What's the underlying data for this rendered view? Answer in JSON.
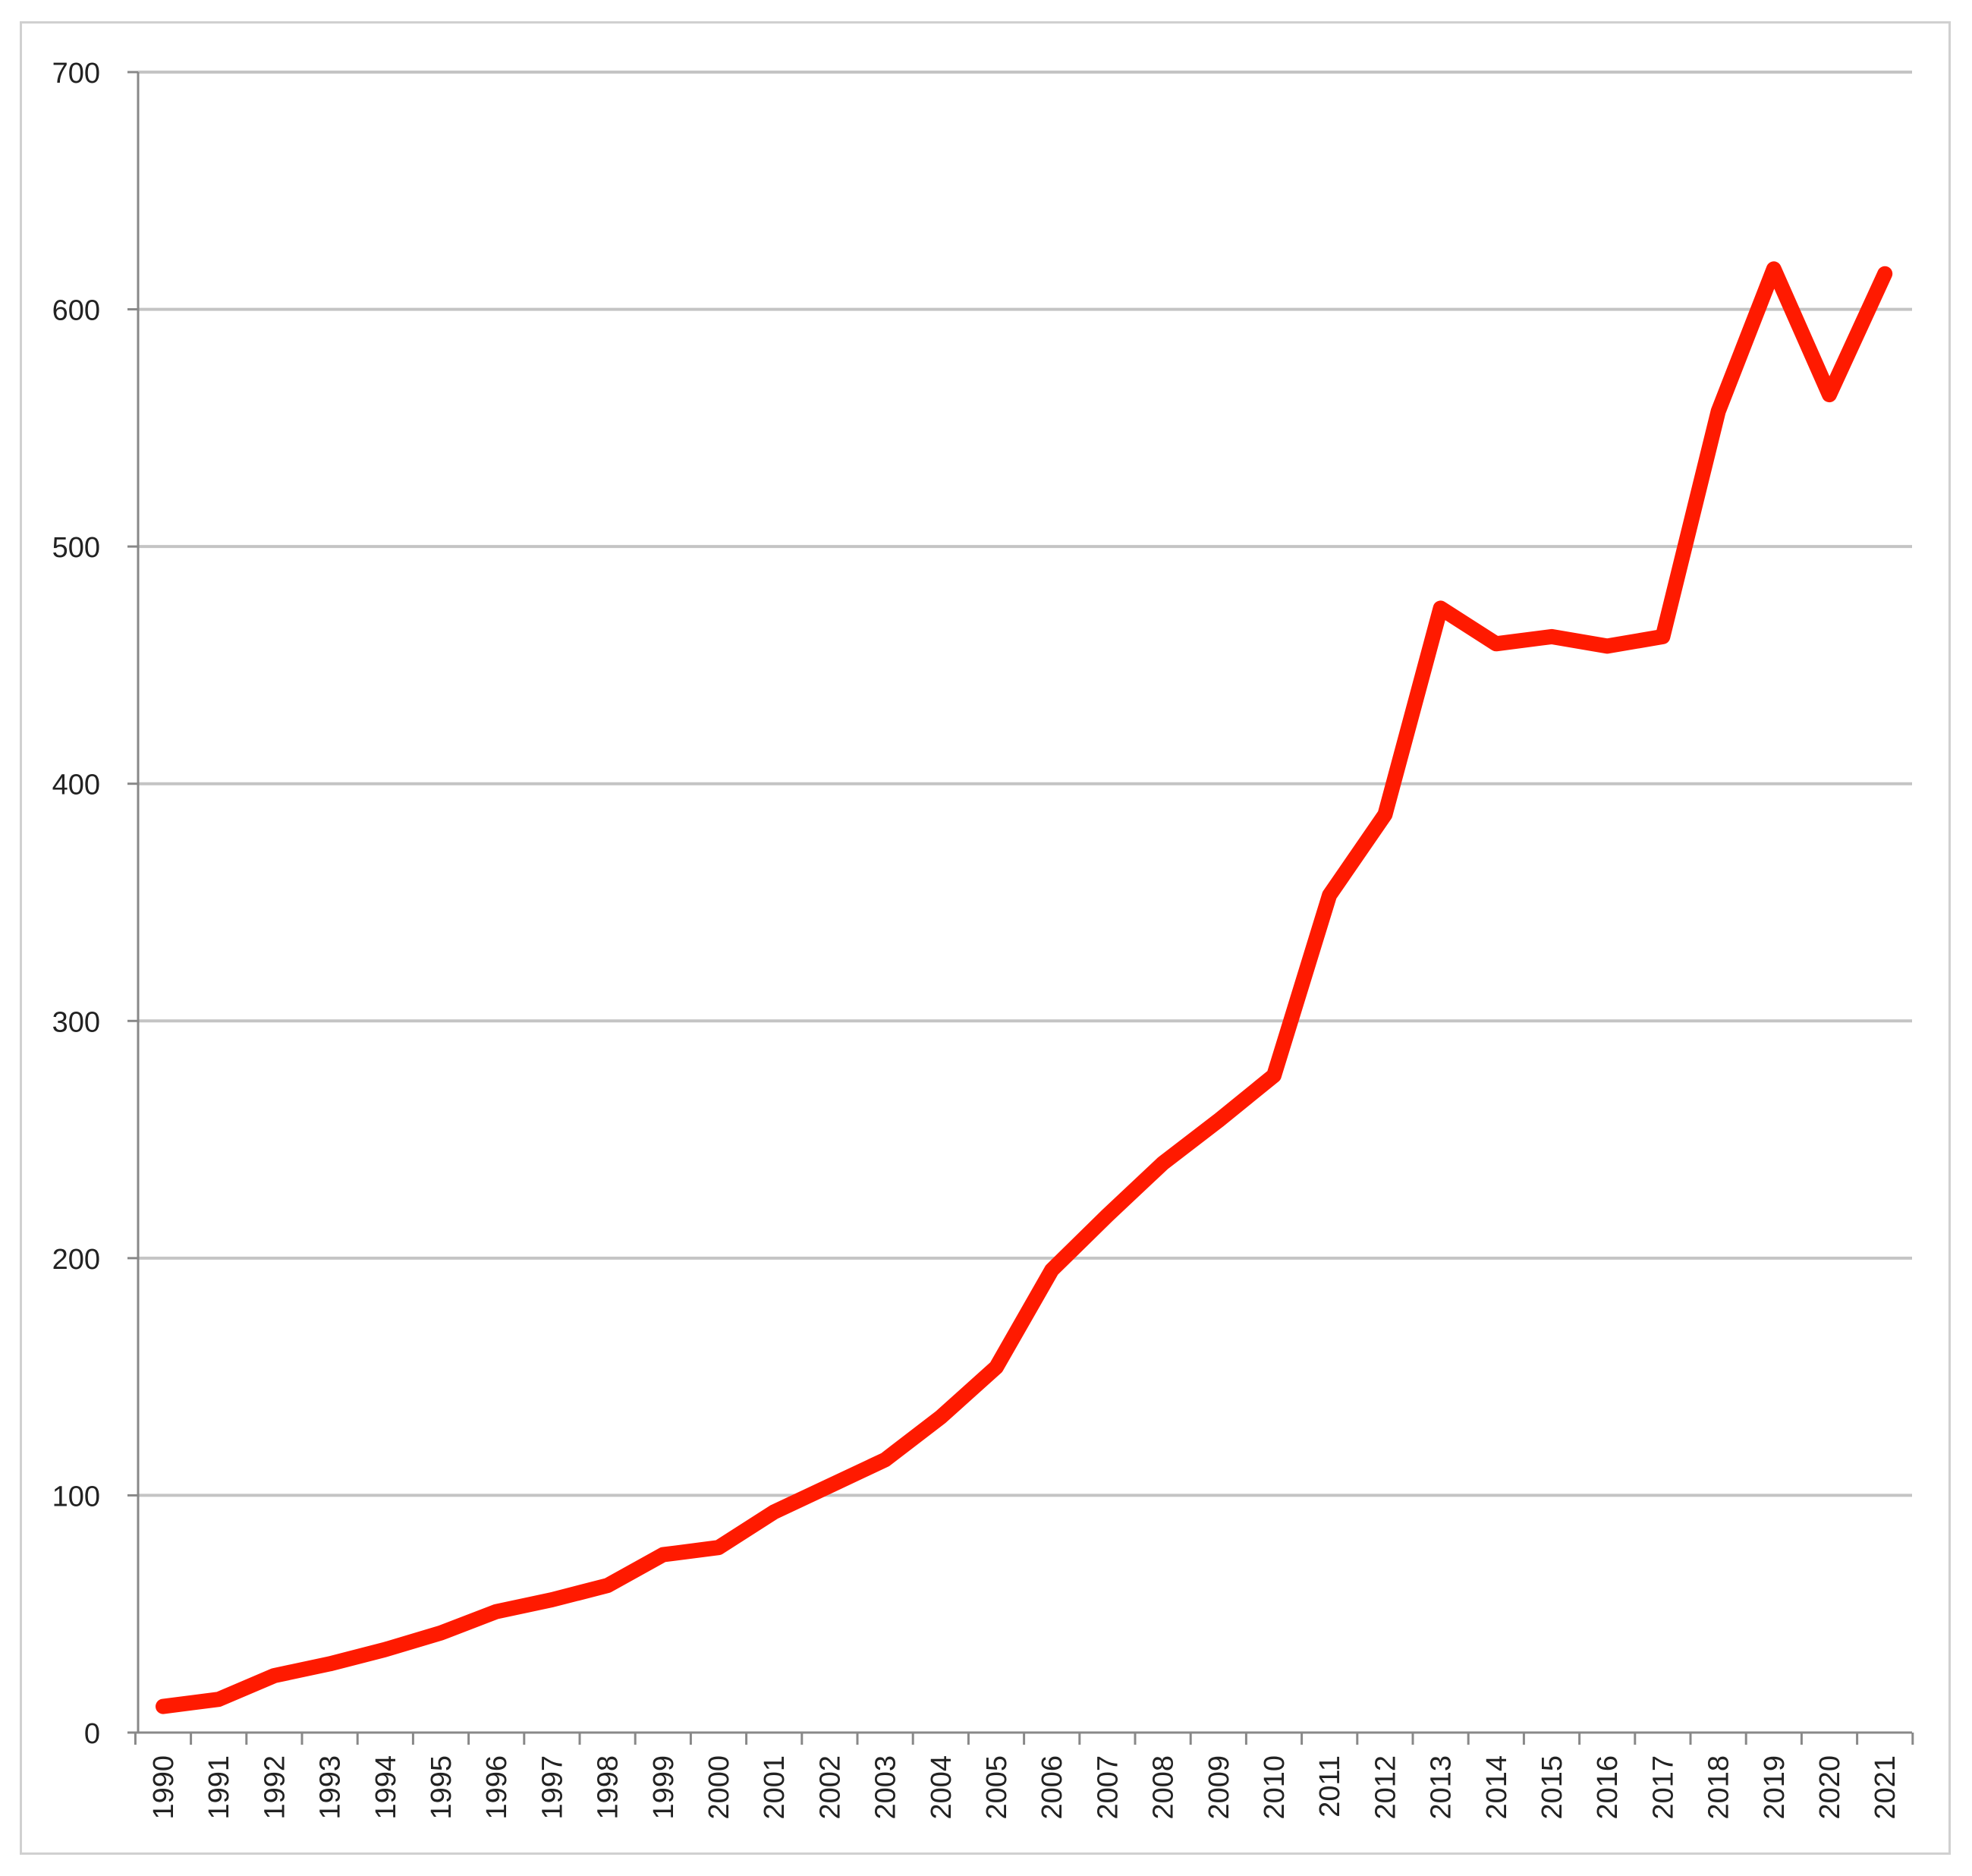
{
  "chart_data": {
    "type": "line",
    "title": "",
    "xlabel": "",
    "ylabel": "",
    "ylim": [
      0,
      700
    ],
    "yticks": [
      0,
      100,
      200,
      300,
      400,
      500,
      600,
      700
    ],
    "grid": true,
    "legend": "none",
    "categories": [
      "1990",
      "1991",
      "1992",
      "1993",
      "1994",
      "1995",
      "1996",
      "1997",
      "1998",
      "1999",
      "2000",
      "2001",
      "2002",
      "2003",
      "2004",
      "2005",
      "2006",
      "2007",
      "2008",
      "2009",
      "2010",
      "2011",
      "2012",
      "2013",
      "2014",
      "2015",
      "2016",
      "2017",
      "2018",
      "2019",
      "2020",
      "2021"
    ],
    "series": [
      {
        "color": "#ff1a00",
        "values": [
          11,
          14,
          24,
          29,
          35,
          42,
          51,
          56,
          62,
          75,
          78,
          93,
          104,
          115,
          133,
          154,
          195,
          218,
          240,
          258,
          277,
          353,
          387,
          474,
          459,
          462,
          458,
          462,
          557,
          617,
          564,
          615
        ]
      }
    ]
  }
}
